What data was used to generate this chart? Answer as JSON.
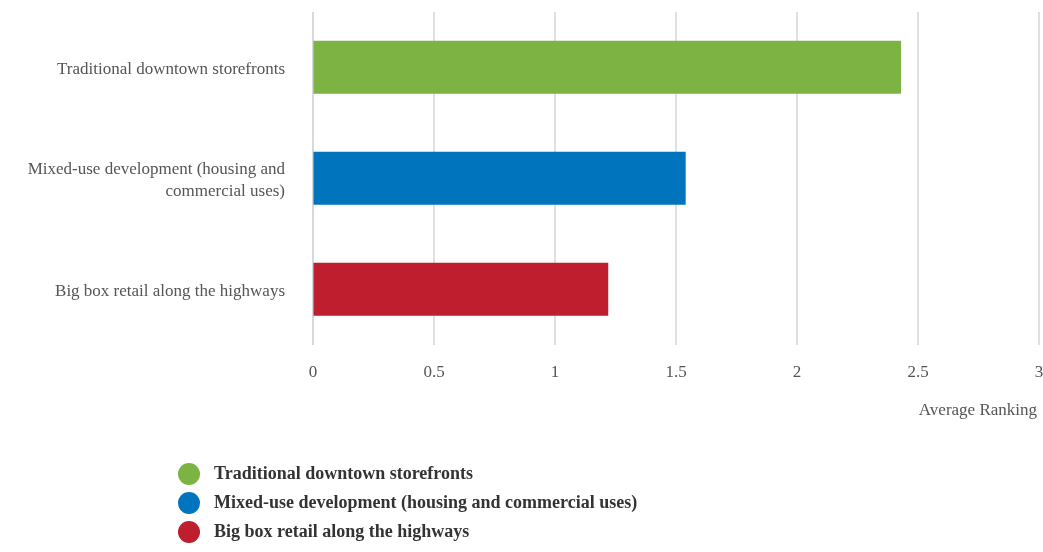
{
  "chart_data": {
    "type": "bar",
    "orientation": "horizontal",
    "stacked": true,
    "xlabel": "Average Ranking",
    "categories": [
      "Traditional downtown storefronts",
      "Mixed-use development (housing and commercial uses)",
      "Big box retail along the highways"
    ],
    "series": [
      {
        "name": "Traditional downtown storefronts",
        "color": "#7cb342",
        "values": [
          2.43,
          null,
          null
        ]
      },
      {
        "name": "Mixed-use development (housing and commercial uses)",
        "color": "#0074bc",
        "values": [
          null,
          1.54,
          null
        ]
      },
      {
        "name": "Big box retail along the highways",
        "color": "#be1e2d",
        "values": [
          null,
          null,
          1.22
        ]
      }
    ],
    "xlim": [
      0,
      3
    ],
    "xticks": [
      0,
      0.5,
      1,
      1.5,
      2,
      2.5,
      3
    ],
    "grid": "x",
    "legend": "bottom"
  }
}
